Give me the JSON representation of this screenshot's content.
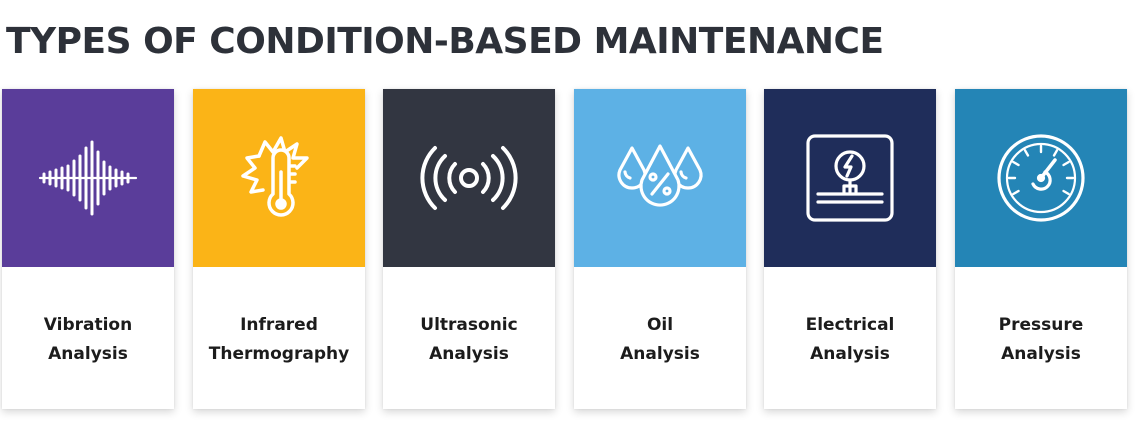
{
  "title": "TYPES OF CONDITION-BASED MAINTENANCE",
  "cards": [
    {
      "line1": "Vibration",
      "line2": "Analysis",
      "icon": "sound-wave-icon",
      "color": "#5a3d9a"
    },
    {
      "line1": "Infrared",
      "line2": "Thermography",
      "icon": "thermometer-icon",
      "color": "#fbb417"
    },
    {
      "line1": "Ultrasonic",
      "line2": "Analysis",
      "icon": "ultrasonic-signal-icon",
      "color": "#323641"
    },
    {
      "line1": "Oil",
      "line2": "Analysis",
      "icon": "oil-drops-icon",
      "color": "#5db1e5"
    },
    {
      "line1": "Electrical",
      "line2": "Analysis",
      "icon": "electrical-panel-icon",
      "color": "#1f2d5a"
    },
    {
      "line1": "Pressure",
      "line2": "Analysis",
      "icon": "pressure-gauge-icon",
      "color": "#2485b6"
    }
  ]
}
